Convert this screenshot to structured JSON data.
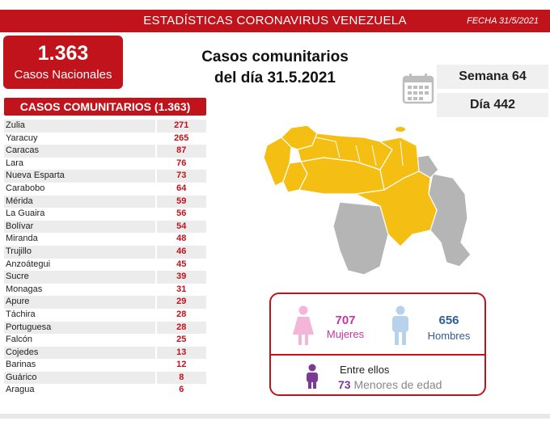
{
  "header": {
    "title": "ESTADÍSTICAS CORONAVIRUS VENEZUELA",
    "date": "FECHA 31/5/2021"
  },
  "total": {
    "number": "1.363",
    "label": "Casos Nacionales"
  },
  "main_title": {
    "line1": "Casos comunitarios",
    "line2": "del día 31.5.2021"
  },
  "week": "Semana 64",
  "day": "Día 442",
  "table": {
    "title": "CASOS COMUNITARIOS (1.363)",
    "rows": [
      {
        "state": "Zulia",
        "cases": "271"
      },
      {
        "state": "Yaracuy",
        "cases": "265"
      },
      {
        "state": "Caracas",
        "cases": "87"
      },
      {
        "state": "Lara",
        "cases": "76"
      },
      {
        "state": "Nueva Esparta",
        "cases": "73"
      },
      {
        "state": "Carabobo",
        "cases": "64"
      },
      {
        "state": "Mérida",
        "cases": "59"
      },
      {
        "state": "La Guaira",
        "cases": "56"
      },
      {
        "state": "Bolívar",
        "cases": "54"
      },
      {
        "state": "Miranda",
        "cases": "48"
      },
      {
        "state": "Trujillo",
        "cases": "46"
      },
      {
        "state": "Anzoátegui",
        "cases": "45"
      },
      {
        "state": "Sucre",
        "cases": "39"
      },
      {
        "state": "Monagas",
        "cases": "31"
      },
      {
        "state": "Apure",
        "cases": "29"
      },
      {
        "state": "Táchira",
        "cases": "28"
      },
      {
        "state": "Portuguesa",
        "cases": "28"
      },
      {
        "state": "Falcón",
        "cases": "25"
      },
      {
        "state": "Cojedes",
        "cases": "13"
      },
      {
        "state": "Barinas",
        "cases": "12"
      },
      {
        "state": "Guárico",
        "cases": "8"
      },
      {
        "state": "Aragua",
        "cases": "6"
      }
    ]
  },
  "gender": {
    "female_count": "707",
    "female_label": "Mujeres",
    "male_count": "656",
    "male_label": "Hombres",
    "between": "Entre ellos",
    "minors_count": "73",
    "minors_label": "Menores de edad"
  },
  "colors": {
    "brand_red": "#c0131b",
    "map_affected": "#f5be12",
    "map_unaffected": "#b5b5b5",
    "female": "#c535a3",
    "male": "#2e5d96",
    "minors": "#7b3a98"
  },
  "icons": [
    "calendar-icon",
    "female-icon",
    "male-icon",
    "child-icon"
  ]
}
